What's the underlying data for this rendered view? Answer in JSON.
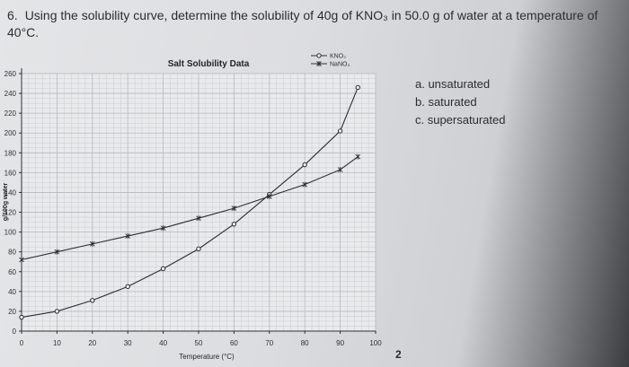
{
  "question": {
    "number": "6.",
    "text": "Using the solubility curve, determine the solubility of 40g of KNO₃ in 50.0 g of water at a temperature of 40°C."
  },
  "options": [
    {
      "label": "a. unsaturated"
    },
    {
      "label": "b. saturated"
    },
    {
      "label": "c. supersaturated"
    }
  ],
  "page_mark": "2",
  "chart_data": {
    "type": "line",
    "title": "Salt Solubility Data",
    "xlabel": "Temperature (°C)",
    "ylabel": "g/100g water",
    "xlim": [
      0,
      100
    ],
    "ylim": [
      0,
      260
    ],
    "xticks": [
      0,
      10,
      20,
      30,
      40,
      50,
      60,
      70,
      80,
      90,
      100
    ],
    "yticks": [
      0,
      20,
      40,
      60,
      80,
      100,
      120,
      140,
      160,
      180,
      200,
      220,
      240,
      260
    ],
    "grid": true,
    "legend_position": "top-right",
    "series": [
      {
        "name": "KNO₃",
        "marker": "circle",
        "color": "#2b2e33",
        "x": [
          0,
          10,
          20,
          30,
          40,
          50,
          60,
          70,
          80,
          90,
          95
        ],
        "y": [
          14,
          20,
          31,
          45,
          63,
          83,
          108,
          138,
          168,
          202,
          246
        ]
      },
      {
        "name": "NaNO₃",
        "marker": "x",
        "color": "#2b2e33",
        "x": [
          0,
          10,
          20,
          30,
          40,
          50,
          60,
          70,
          80,
          90,
          95
        ],
        "y": [
          72,
          80,
          88,
          96,
          104,
          114,
          124,
          136,
          148,
          163,
          176
        ]
      }
    ]
  }
}
